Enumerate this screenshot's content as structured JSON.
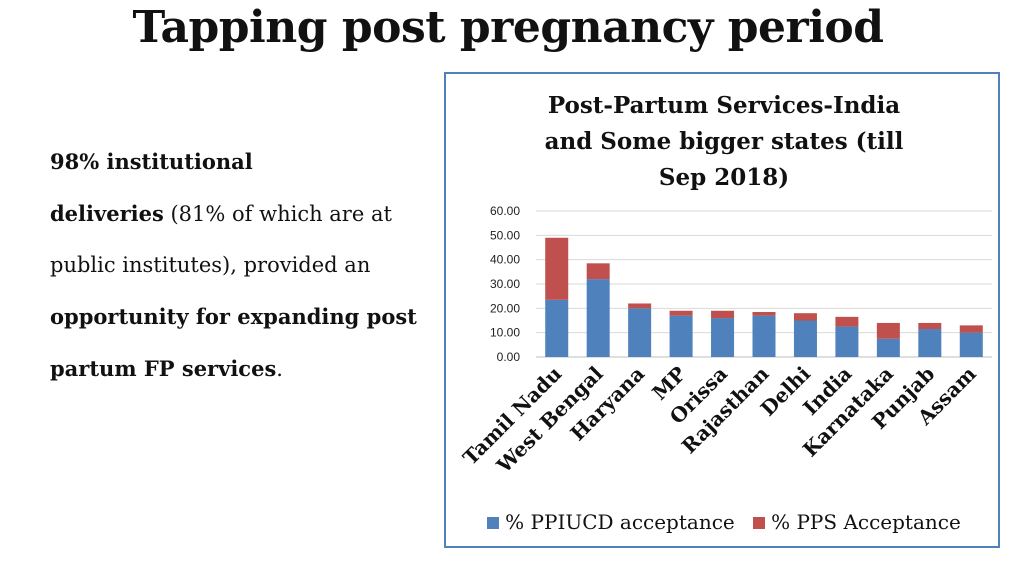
{
  "slide": {
    "title": "Tapping post pregnancy period",
    "text": {
      "p1": "98% institutional",
      "p2": "deliveries",
      "p3": " (81% of which are at public institutes), provided an ",
      "p4": "opportunity for expanding post partum FP services",
      "p5": "."
    }
  },
  "colors": {
    "ppiucd": "#4f81bd",
    "pps": "#c0504d",
    "border": "#4f81bd",
    "grid": "#d9d9d9"
  },
  "chart_data": {
    "type": "bar",
    "stacked": true,
    "title_lines": [
      "Post-Partum Services-India",
      "and Some bigger states (till",
      "Sep 2018)"
    ],
    "categories": [
      "Tamil Nadu",
      "West Bengal",
      "Haryana",
      "MP",
      "Orissa",
      "Rajasthan",
      "Delhi",
      "India",
      "Karnataka",
      "Punjab",
      "Assam"
    ],
    "series": [
      {
        "name": "% PPIUCD acceptance",
        "values": [
          23.5,
          32.0,
          20.0,
          17.0,
          16.0,
          17.0,
          15.0,
          12.5,
          7.5,
          11.5,
          10.0
        ]
      },
      {
        "name": "% PPS Acceptance",
        "values": [
          25.5,
          6.5,
          2.0,
          2.0,
          3.0,
          1.5,
          3.0,
          4.0,
          6.5,
          2.5,
          3.0
        ]
      }
    ],
    "yticks": [
      "0.00",
      "10.00",
      "20.00",
      "30.00",
      "40.00",
      "50.00",
      "60.00"
    ],
    "ylim": [
      0,
      60
    ],
    "grid": true,
    "legend_position": "bottom"
  }
}
